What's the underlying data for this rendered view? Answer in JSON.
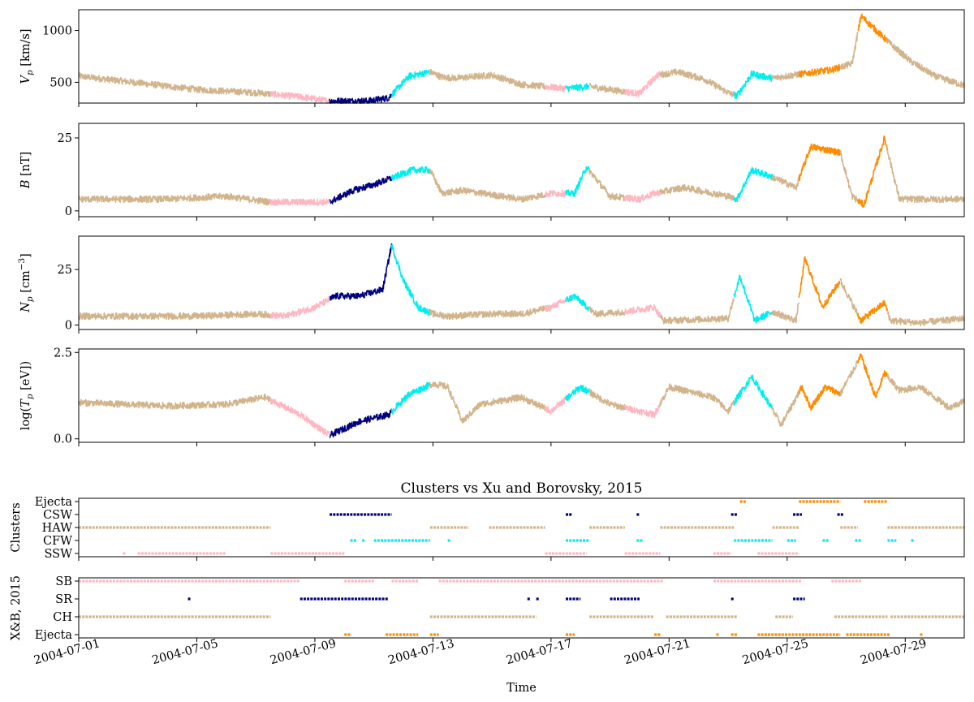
{
  "colors": {
    "HAW": "#d2b48c",
    "SSW": "#ffb6c1",
    "CSW": "#000080",
    "CFW": "#00eeee",
    "Ejecta": "#ff8c00"
  },
  "chart_data": [
    {
      "type": "line",
      "ylabel": "V_p [km/s]",
      "ylabel_base": "V",
      "ylabel_sub": "p",
      "ylabel_unit": " [km/s]",
      "yticks": [
        500,
        1000
      ],
      "ylim": [
        300,
        1200
      ],
      "grid": false,
      "keypoints": {
        "x": [
          0,
          4,
          6,
          7.5,
          8.5,
          9.8,
          10.5,
          11.2,
          11.9,
          12.3,
          12.8,
          14.0,
          15.0,
          16.5,
          17.3,
          18.0,
          19.0,
          19.6,
          20.3,
          21.2,
          22.0,
          22.3,
          22.8,
          23.5,
          24.2,
          25.5,
          26.2,
          26.5,
          27.5,
          28.2,
          29.0,
          30.0
        ],
        "y": [
          560,
          430,
          400,
          360,
          320,
          320,
          350,
          560,
          600,
          550,
          540,
          570,
          480,
          440,
          460,
          430,
          390,
          570,
          600,
          530,
          400,
          370,
          580,
          540,
          570,
          620,
          680,
          1140,
          870,
          700,
          560,
          470
        ]
      },
      "segments": [
        {
          "from": 0,
          "to": 6.5,
          "cluster": "HAW"
        },
        {
          "from": 6.5,
          "to": 8.5,
          "cluster": "SSW"
        },
        {
          "from": 8.5,
          "to": 10.6,
          "cluster": "CSW"
        },
        {
          "from": 10.6,
          "to": 11.9,
          "cluster": "CFW"
        },
        {
          "from": 11.9,
          "to": 15.8,
          "cluster": "HAW"
        },
        {
          "from": 15.8,
          "to": 16.5,
          "cluster": "SSW"
        },
        {
          "from": 16.5,
          "to": 17.3,
          "cluster": "CFW"
        },
        {
          "from": 17.3,
          "to": 18.5,
          "cluster": "HAW"
        },
        {
          "from": 18.5,
          "to": 19.7,
          "cluster": "SSW"
        },
        {
          "from": 19.7,
          "to": 22.2,
          "cluster": "HAW"
        },
        {
          "from": 22.2,
          "to": 23.5,
          "cluster": "CFW"
        },
        {
          "from": 23.5,
          "to": 24.4,
          "cluster": "HAW"
        },
        {
          "from": 24.4,
          "to": 25.8,
          "cluster": "Ejecta"
        },
        {
          "from": 25.8,
          "to": 26.4,
          "cluster": "HAW"
        },
        {
          "from": 26.4,
          "to": 27.4,
          "cluster": "Ejecta"
        },
        {
          "from": 27.4,
          "to": 30.0,
          "cluster": "HAW"
        }
      ]
    },
    {
      "type": "line",
      "ylabel": "B [nT]",
      "ylabel_base": "B",
      "ylabel_sub": "",
      "ylabel_unit": " [nT]",
      "yticks": [
        0,
        25
      ],
      "ylim": [
        -2,
        30
      ],
      "grid": false,
      "keypoints": {
        "x": [
          0,
          3,
          5,
          6.5,
          7.5,
          8.5,
          9.3,
          10.0,
          10.8,
          11.3,
          11.9,
          12.3,
          13.0,
          15.0,
          16.0,
          16.8,
          17.2,
          18.0,
          19.0,
          19.5,
          20.5,
          22.0,
          22.3,
          22.8,
          23.4,
          24.3,
          24.8,
          25.8,
          26.2,
          26.6,
          27.3,
          27.8,
          29.0,
          30.0
        ],
        "y": [
          4,
          4,
          5,
          3,
          3,
          3,
          7,
          9,
          12,
          14,
          14,
          6,
          7,
          4,
          6,
          6,
          15,
          5,
          4,
          6,
          8,
          5,
          4,
          14,
          12,
          8,
          22,
          20,
          5,
          2,
          25,
          4,
          4,
          4
        ]
      },
      "segments": [
        {
          "from": 0,
          "to": 6.5,
          "cluster": "HAW"
        },
        {
          "from": 6.5,
          "to": 8.5,
          "cluster": "SSW"
        },
        {
          "from": 8.5,
          "to": 10.6,
          "cluster": "CSW"
        },
        {
          "from": 10.6,
          "to": 11.9,
          "cluster": "CFW"
        },
        {
          "from": 11.9,
          "to": 15.8,
          "cluster": "HAW"
        },
        {
          "from": 15.8,
          "to": 16.5,
          "cluster": "SSW"
        },
        {
          "from": 16.5,
          "to": 17.3,
          "cluster": "CFW"
        },
        {
          "from": 17.3,
          "to": 18.5,
          "cluster": "HAW"
        },
        {
          "from": 18.5,
          "to": 19.7,
          "cluster": "SSW"
        },
        {
          "from": 19.7,
          "to": 22.2,
          "cluster": "HAW"
        },
        {
          "from": 22.2,
          "to": 23.5,
          "cluster": "CFW"
        },
        {
          "from": 23.5,
          "to": 24.4,
          "cluster": "HAW"
        },
        {
          "from": 24.4,
          "to": 25.8,
          "cluster": "Ejecta"
        },
        {
          "from": 25.8,
          "to": 26.4,
          "cluster": "HAW"
        },
        {
          "from": 26.4,
          "to": 27.4,
          "cluster": "Ejecta"
        },
        {
          "from": 27.4,
          "to": 30.0,
          "cluster": "HAW"
        }
      ]
    },
    {
      "type": "line",
      "ylabel": "N_p [cm^-3]",
      "ylabel_base": "N",
      "ylabel_sub": "p",
      "ylabel_unit": " [cm",
      "ylabel_sup": "−3",
      "ylabel_close": "]",
      "yticks": [
        0,
        25
      ],
      "ylim": [
        -2,
        40
      ],
      "grid": false,
      "keypoints": {
        "x": [
          0,
          4,
          6,
          7,
          8.0,
          8.7,
          9.5,
          10.3,
          10.6,
          11.0,
          11.5,
          12.0,
          12.5,
          14.0,
          15.0,
          16.0,
          16.8,
          17.5,
          18.5,
          19.5,
          19.8,
          22.0,
          22.4,
          22.9,
          23.5,
          24.3,
          24.6,
          25.2,
          25.8,
          26.5,
          27.3,
          27.5,
          28.5,
          30.0
        ],
        "y": [
          4,
          4,
          5,
          4,
          8,
          13,
          13,
          16,
          36,
          20,
          8,
          5,
          4,
          5,
          5,
          8,
          13,
          5,
          6,
          8,
          2,
          3,
          22,
          2,
          6,
          2,
          30,
          8,
          20,
          2,
          10,
          2,
          1,
          3
        ]
      },
      "segments": [
        {
          "from": 0,
          "to": 6.5,
          "cluster": "HAW"
        },
        {
          "from": 6.5,
          "to": 8.5,
          "cluster": "SSW"
        },
        {
          "from": 8.5,
          "to": 10.6,
          "cluster": "CSW"
        },
        {
          "from": 10.6,
          "to": 11.9,
          "cluster": "CFW"
        },
        {
          "from": 11.9,
          "to": 15.8,
          "cluster": "HAW"
        },
        {
          "from": 15.8,
          "to": 16.5,
          "cluster": "SSW"
        },
        {
          "from": 16.5,
          "to": 17.3,
          "cluster": "CFW"
        },
        {
          "from": 17.3,
          "to": 18.5,
          "cluster": "HAW"
        },
        {
          "from": 18.5,
          "to": 19.7,
          "cluster": "SSW"
        },
        {
          "from": 19.7,
          "to": 22.2,
          "cluster": "HAW"
        },
        {
          "from": 22.2,
          "to": 23.5,
          "cluster": "CFW"
        },
        {
          "from": 23.5,
          "to": 24.4,
          "cluster": "HAW"
        },
        {
          "from": 24.4,
          "to": 25.8,
          "cluster": "Ejecta"
        },
        {
          "from": 25.8,
          "to": 26.4,
          "cluster": "HAW"
        },
        {
          "from": 26.4,
          "to": 27.4,
          "cluster": "Ejecta"
        },
        {
          "from": 27.4,
          "to": 30.0,
          "cluster": "HAW"
        }
      ]
    },
    {
      "type": "line",
      "ylabel": "log(T_p [eV])",
      "ylabel_base": "log(T",
      "ylabel_sub": "p",
      "ylabel_unit": " [eV])",
      "yticks": [
        0.0,
        2.5
      ],
      "ytick_labels": [
        "0.0",
        "2.5"
      ],
      "ylim": [
        -0.1,
        2.6
      ],
      "grid": false,
      "keypoints": {
        "x": [
          0,
          3,
          5,
          6.3,
          7.5,
          8.5,
          9.5,
          10.5,
          11.2,
          12.0,
          12.5,
          13.0,
          13.6,
          15.0,
          16.0,
          17.0,
          18.0,
          19.0,
          19.5,
          20.0,
          21.5,
          22.0,
          22.8,
          23.4,
          23.8,
          24.5,
          24.8,
          25.3,
          25.8,
          26.5,
          27.0,
          27.3,
          27.8,
          28.5,
          29.5,
          30.0
        ],
        "y": [
          1.05,
          0.95,
          1.0,
          1.2,
          0.7,
          0.1,
          0.5,
          0.7,
          1.3,
          1.6,
          1.5,
          0.5,
          1.0,
          1.2,
          0.8,
          1.5,
          1.0,
          0.8,
          0.7,
          1.5,
          1.2,
          0.8,
          1.8,
          1.0,
          0.4,
          1.5,
          0.9,
          1.5,
          1.3,
          2.4,
          1.2,
          1.9,
          1.4,
          1.5,
          0.9,
          1.1
        ]
      },
      "segments": [
        {
          "from": 0,
          "to": 6.5,
          "cluster": "HAW"
        },
        {
          "from": 6.5,
          "to": 8.5,
          "cluster": "SSW"
        },
        {
          "from": 8.5,
          "to": 10.6,
          "cluster": "CSW"
        },
        {
          "from": 10.6,
          "to": 11.9,
          "cluster": "CFW"
        },
        {
          "from": 11.9,
          "to": 15.8,
          "cluster": "HAW"
        },
        {
          "from": 15.8,
          "to": 16.5,
          "cluster": "SSW"
        },
        {
          "from": 16.5,
          "to": 17.3,
          "cluster": "CFW"
        },
        {
          "from": 17.3,
          "to": 18.5,
          "cluster": "HAW"
        },
        {
          "from": 18.5,
          "to": 19.7,
          "cluster": "SSW"
        },
        {
          "from": 19.7,
          "to": 22.2,
          "cluster": "HAW"
        },
        {
          "from": 22.2,
          "to": 23.5,
          "cluster": "CFW"
        },
        {
          "from": 23.5,
          "to": 24.4,
          "cluster": "HAW"
        },
        {
          "from": 24.4,
          "to": 25.8,
          "cluster": "Ejecta"
        },
        {
          "from": 25.8,
          "to": 26.4,
          "cluster": "HAW"
        },
        {
          "from": 26.4,
          "to": 27.4,
          "cluster": "Ejecta"
        },
        {
          "from": 27.4,
          "to": 30.0,
          "cluster": "HAW"
        }
      ]
    },
    {
      "type": "scatter",
      "title": "Clusters vs Xu and Borovsky, 2015",
      "ylabel": "Clusters",
      "categories": [
        "Ejecta",
        "CSW",
        "HAW",
        "CFW",
        "SSW"
      ],
      "spans": {
        "Ejecta": [
          [
            22.4,
            22.6
          ],
          [
            24.4,
            25.8
          ],
          [
            26.6,
            27.4
          ]
        ],
        "CSW": [
          [
            8.5,
            10.6
          ],
          [
            16.5,
            16.7
          ],
          [
            18.9,
            19.0
          ],
          [
            22.1,
            22.3
          ],
          [
            24.2,
            24.5
          ],
          [
            25.7,
            25.9
          ]
        ],
        "HAW": [
          [
            0,
            6.5
          ],
          [
            11.9,
            13.2
          ],
          [
            13.9,
            15.8
          ],
          [
            17.3,
            18.5
          ],
          [
            19.7,
            22.2
          ],
          [
            23.5,
            24.4
          ],
          [
            25.8,
            26.4
          ],
          [
            27.4,
            30.0
          ]
        ],
        "CFW": [
          [
            9.2,
            9.4
          ],
          [
            9.6,
            9.7
          ],
          [
            10.0,
            11.9
          ],
          [
            12.5,
            12.6
          ],
          [
            16.5,
            17.3
          ],
          [
            18.9,
            19.1
          ],
          [
            22.2,
            23.5
          ],
          [
            24.0,
            24.3
          ],
          [
            25.2,
            25.4
          ],
          [
            26.3,
            26.5
          ],
          [
            27.4,
            27.7
          ],
          [
            28.2,
            28.3
          ]
        ],
        "SSW": [
          [
            1.5,
            1.6
          ],
          [
            2.0,
            5.0
          ],
          [
            6.5,
            9.0
          ],
          [
            15.8,
            17.2
          ],
          [
            18.5,
            19.7
          ],
          [
            21.5,
            22.1
          ],
          [
            23.0,
            24.4
          ]
        ]
      }
    },
    {
      "type": "scatter",
      "ylabel": "X&B, 2015",
      "categories": [
        "SB",
        "SR",
        "CH",
        "Ejecta"
      ],
      "spans": {
        "SB": [
          [
            0,
            7.5
          ],
          [
            9.0,
            10.0
          ],
          [
            10.6,
            11.5
          ],
          [
            12.2,
            19.8
          ],
          [
            21.5,
            24.5
          ],
          [
            25.5,
            26.5
          ]
        ],
        "SR": [
          [
            3.7,
            3.8
          ],
          [
            7.5,
            10.5
          ],
          [
            15.2,
            15.3
          ],
          [
            15.5,
            15.6
          ],
          [
            16.5,
            17.0
          ],
          [
            18.0,
            19.0
          ],
          [
            22.1,
            22.2
          ],
          [
            24.2,
            24.6
          ]
        ],
        "CH": [
          [
            0,
            6.5
          ],
          [
            11.9,
            15.5
          ],
          [
            17.3,
            19.5
          ],
          [
            19.9,
            22.3
          ],
          [
            23.6,
            24.2
          ],
          [
            25.6,
            27.4
          ],
          [
            27.5,
            30.0
          ]
        ],
        "Ejecta": [
          [
            9.0,
            9.2
          ],
          [
            10.4,
            11.5
          ],
          [
            11.9,
            12.2
          ],
          [
            16.5,
            16.8
          ],
          [
            19.5,
            19.7
          ],
          [
            21.6,
            21.7
          ],
          [
            22.1,
            22.3
          ],
          [
            23.0,
            25.8
          ],
          [
            26.0,
            27.5
          ],
          [
            28.5,
            28.6
          ]
        ]
      }
    }
  ],
  "xaxis": {
    "start": "2004-07-01",
    "ticks": [
      0,
      4,
      8,
      12,
      16,
      20,
      24,
      28
    ],
    "tick_labels": [
      "2004-07-01",
      "2004-07-05",
      "2004-07-09",
      "2004-07-13",
      "2004-07-17",
      "2004-07-21",
      "2004-07-25",
      "2004-07-29"
    ],
    "xlim": [
      0,
      30
    ],
    "xlabel": "Time"
  }
}
